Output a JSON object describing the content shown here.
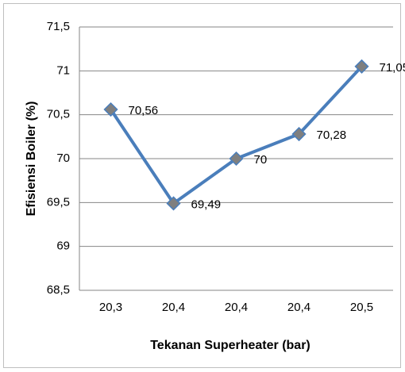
{
  "chart_data": {
    "type": "line",
    "x_label": "Tekanan Superheater (bar)",
    "y_label": "Efisiensi Boiler (%)",
    "categories": [
      "20,3",
      "20,4",
      "20,4",
      "20,4",
      "20,5"
    ],
    "series": [
      {
        "color": "#4a7ebb",
        "values": [
          70.56,
          69.49,
          70,
          70.28,
          71.05
        ],
        "value_labels": [
          "70,56",
          "69,49",
          "70",
          "70,28",
          "71,05"
        ]
      }
    ],
    "ylim": [
      68.5,
      71.5
    ],
    "yticks": [
      {
        "value": 68.5,
        "label": "68,5"
      },
      69,
      {
        "value": 69.5,
        "label": "69,5"
      },
      70,
      {
        "value": 70.5,
        "label": "70,5"
      },
      71,
      {
        "value": 71.5,
        "label": "71,5"
      }
    ],
    "grid": true
  }
}
